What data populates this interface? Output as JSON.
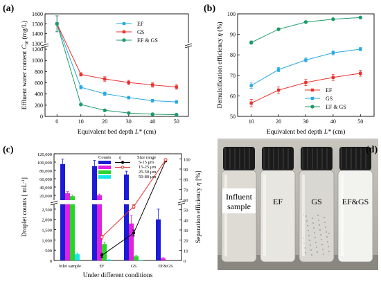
{
  "chart_data": [
    {
      "panel": "(a)",
      "type": "line",
      "xlabel_text": "Equivalent bed depth",
      "xlabel_var": "L*",
      "xlabel_unit": "(cm)",
      "ylabel_text": "Effluent water content",
      "ylabel_var": "C",
      "ylabel_sub": "W",
      "ylabel_unit": "(mg/L)",
      "x": [
        0,
        10,
        20,
        30,
        40,
        50
      ],
      "xlim": [
        -5,
        55
      ],
      "x_ticks": [
        "0",
        "10",
        "20",
        "30",
        "40",
        "50"
      ],
      "y_ticks_lower": [
        "0",
        "200",
        "400",
        "600",
        "800",
        "1000",
        "1200"
      ],
      "y_ticks_upper": [
        "1300",
        "1400",
        "1500",
        "1600"
      ],
      "ylim_lower": [
        0,
        1250
      ],
      "ylim_upper": [
        1300,
        1600
      ],
      "legend_position": "top-right",
      "series": [
        {
          "name": "EF",
          "color": "#29a8e0",
          "marker": "square",
          "values": [
            1500,
            520,
            405,
            335,
            280,
            258
          ],
          "errors": [
            80,
            30,
            30,
            25,
            25,
            25
          ]
        },
        {
          "name": "GS",
          "color": "#e8322e",
          "marker": "square",
          "values": [
            1500,
            750,
            668,
            605,
            562,
            525
          ],
          "errors": [
            80,
            30,
            40,
            40,
            40,
            40
          ]
        },
        {
          "name": "EF & GS",
          "color": "#1f9a6a",
          "marker": "circle",
          "values": [
            1500,
            212,
            108,
            60,
            38,
            30
          ],
          "errors": [
            80,
            10,
            8,
            6,
            5,
            5
          ]
        }
      ]
    },
    {
      "panel": "(b)",
      "type": "line",
      "xlabel_text": "Equivalent bed depth",
      "xlabel_var": "L*",
      "xlabel_unit": "(cm)",
      "ylabel_text": "Demulsification efficiency",
      "ylabel_var": "η",
      "ylabel_unit": "(%)",
      "x": [
        10,
        20,
        30,
        40,
        50
      ],
      "xlim": [
        5,
        55
      ],
      "ylim": [
        50,
        100
      ],
      "x_ticks": [
        "10",
        "20",
        "30",
        "40",
        "50"
      ],
      "y_ticks": [
        "50",
        "60",
        "70",
        "80",
        "90",
        "100"
      ],
      "legend_position": "bottom-right",
      "series": [
        {
          "name": "EF",
          "color": "#e8322e",
          "marker": "square",
          "values": [
            56.5,
            62.8,
            66.5,
            69,
            71
          ],
          "errors": [
            1.8,
            1.6,
            1.5,
            1.5,
            1.4
          ]
        },
        {
          "name": "GS",
          "color": "#29a8e0",
          "marker": "square",
          "values": [
            65,
            72.8,
            77.5,
            81,
            82.8
          ],
          "errors": [
            1.3,
            1.0,
            1.0,
            1.0,
            0.8
          ]
        },
        {
          "name": "EF & GS",
          "color": "#1f9a6a",
          "marker": "circle",
          "values": [
            86,
            92.5,
            96,
            97.4,
            98.2
          ],
          "errors": [
            0.8,
            0.6,
            0.5,
            0.4,
            0.3
          ]
        }
      ]
    },
    {
      "panel": "(c)",
      "type": "bar",
      "xlabel_text": "Under different conditions",
      "ylabel_text": "Droplet counts",
      "ylabel_unit": "[ mL",
      "ylabel_unit_sup": "-1",
      "ylabel_unit_end": "]",
      "y2label_text": "Separation efficiency",
      "y2label_var": "η",
      "y2label_unit": "[%]",
      "categories": [
        "Inlet sample",
        "EF",
        "GS",
        "EF&GS"
      ],
      "y_ticks_lower": [
        "0",
        "500",
        "1,000",
        "1,500",
        "2,000",
        "2,500"
      ],
      "y_ticks_upper": [
        "20,000",
        "40,000",
        "60,000",
        "80,000",
        "100,000",
        "120,000"
      ],
      "ylim_lower": [
        0,
        2700
      ],
      "ylim_upper": [
        10000,
        120000
      ],
      "y2lim": [
        0,
        105
      ],
      "y2_ticks": [
        "0",
        "10",
        "20",
        "30",
        "40",
        "50",
        "60",
        "70",
        "80",
        "90",
        "100"
      ],
      "legend_counts_header": "Counts",
      "legend_eta_header": "η",
      "legend_range_header": "Size range",
      "bar_series": [
        {
          "name": "5-15 μm",
          "color": "#1c1cd6",
          "values": [
            95000,
            90000,
            70000,
            2000
          ],
          "errors": [
            12000,
            14000,
            8000,
            500
          ]
        },
        {
          "name": "15-25 μm",
          "color": "#e021e0",
          "values": [
            25000,
            20000,
            1800,
            100
          ],
          "errors": [
            4000,
            3000,
            400,
            40
          ]
        },
        {
          "name": "25-50 μm",
          "color": "#2bd42b",
          "values": [
            18000,
            800,
            200,
            0
          ],
          "errors": [
            3000,
            100,
            50,
            0
          ]
        },
        {
          "name": "50-80 μm",
          "color": "#19e6e6",
          "values": [
            300,
            30,
            10,
            0
          ],
          "errors": [
            60,
            10,
            5,
            0
          ]
        }
      ],
      "line_series": [
        {
          "name": "5-15 μm",
          "color": "#000000",
          "x": [
            "EF",
            "GS",
            "EF&GS"
          ],
          "values": [
            5,
            27,
            98
          ],
          "errors": [
            2,
            3,
            1
          ]
        },
        {
          "name": "15-25 μm",
          "color": "#e8322e",
          "x": [
            "EF",
            "GS",
            "EF&GS"
          ],
          "values": [
            23,
            53,
            99
          ],
          "errors": [
            2,
            2,
            1
          ]
        }
      ]
    }
  ],
  "photo": {
    "panel": "(d)",
    "labels": [
      "Influent\nsample",
      "EF",
      "GS",
      "EF&GS"
    ]
  }
}
